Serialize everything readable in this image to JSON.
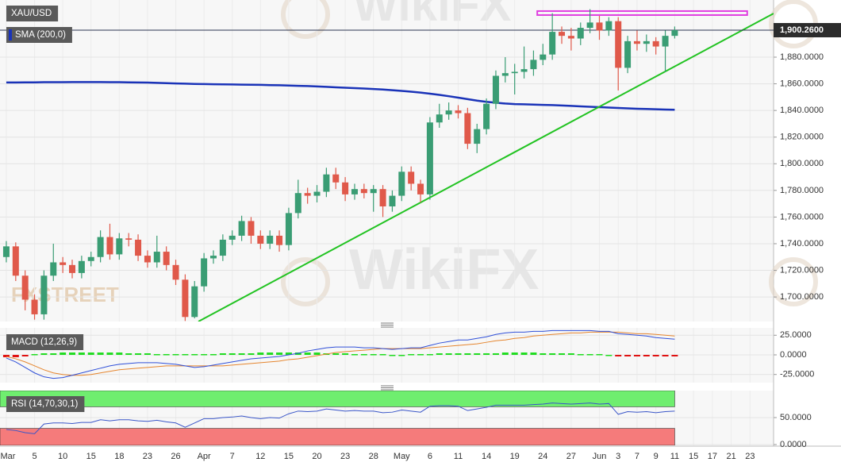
{
  "chart_data": [
    {
      "type": "candlestick",
      "title": "XAU/USD",
      "open": [
        1730,
        1738,
        1716,
        1698,
        1687,
        1716,
        1726,
        1724,
        1718,
        1727,
        1730,
        1745,
        1732,
        1744,
        1743,
        1731,
        1726,
        1734,
        1724,
        1713,
        1685,
        1708,
        1729,
        1731,
        1743,
        1746,
        1757,
        1746,
        1740,
        1746,
        1739,
        1763,
        1778,
        1776,
        1779,
        1792,
        1786,
        1777,
        1781,
        1778,
        1781,
        1768,
        1776,
        1794,
        1785,
        1777,
        1831,
        1837,
        1840,
        1838,
        1815,
        1826,
        1845,
        1866,
        1868,
        1869,
        1871,
        1878,
        1882,
        1899,
        1896,
        1894,
        1902,
        1906,
        1900,
        1907,
        1872,
        1892,
        1890,
        1892,
        1888,
        1896
      ],
      "high": [
        1742,
        1741,
        1720,
        1702,
        1720,
        1740,
        1730,
        1728,
        1731,
        1734,
        1750,
        1755,
        1748,
        1748,
        1747,
        1735,
        1746,
        1738,
        1728,
        1717,
        1712,
        1733,
        1735,
        1747,
        1750,
        1761,
        1760,
        1750,
        1750,
        1750,
        1767,
        1788,
        1782,
        1784,
        1797,
        1797,
        1790,
        1785,
        1785,
        1784,
        1784,
        1780,
        1798,
        1798,
        1788,
        1835,
        1845,
        1846,
        1844,
        1842,
        1830,
        1849,
        1870,
        1880,
        1875,
        1888,
        1885,
        1890,
        1913,
        1903,
        1902,
        1906,
        1916,
        1911,
        1910,
        1910,
        1896,
        1900,
        1897,
        1895,
        1900,
        1903
      ],
      "low": [
        1726,
        1712,
        1690,
        1683,
        1683,
        1712,
        1718,
        1714,
        1714,
        1723,
        1726,
        1728,
        1728,
        1738,
        1727,
        1722,
        1722,
        1720,
        1709,
        1682,
        1684,
        1704,
        1725,
        1727,
        1739,
        1742,
        1740,
        1736,
        1736,
        1734,
        1735,
        1759,
        1770,
        1771,
        1775,
        1781,
        1772,
        1773,
        1774,
        1764,
        1760,
        1764,
        1772,
        1780,
        1771,
        1773,
        1827,
        1833,
        1834,
        1811,
        1808,
        1822,
        1841,
        1861,
        1852,
        1864,
        1866,
        1874,
        1878,
        1890,
        1885,
        1889,
        1898,
        1893,
        1896,
        1855,
        1868,
        1885,
        1884,
        1882,
        1869,
        1894
      ],
      "close": [
        1738,
        1716,
        1698,
        1687,
        1716,
        1726,
        1724,
        1718,
        1727,
        1730,
        1745,
        1732,
        1744,
        1743,
        1731,
        1726,
        1734,
        1724,
        1713,
        1685,
        1708,
        1729,
        1731,
        1743,
        1746,
        1757,
        1746,
        1740,
        1746,
        1739,
        1763,
        1778,
        1776,
        1779,
        1792,
        1786,
        1777,
        1781,
        1778,
        1781,
        1768,
        1776,
        1794,
        1785,
        1777,
        1831,
        1837,
        1840,
        1838,
        1815,
        1826,
        1845,
        1866,
        1868,
        1869,
        1871,
        1878,
        1882,
        1899,
        1896,
        1894,
        1902,
        1906,
        1900,
        1907,
        1872,
        1892,
        1890,
        1892,
        1888,
        1896,
        1900.26
      ],
      "up_color": "#3a9d74",
      "down_color": "#e0594a",
      "series": [
        {
          "name": "SMA (200,0)",
          "color": "#1a33b8",
          "values": [
            1861.0,
            1861.0,
            1861.1,
            1861.1,
            1861.2,
            1861.2,
            1861.2,
            1861.3,
            1861.3,
            1861.3,
            1861.3,
            1861.2,
            1861.2,
            1861.1,
            1861.0,
            1860.9,
            1860.7,
            1860.5,
            1860.3,
            1860.1,
            1859.9,
            1859.8,
            1859.7,
            1859.6,
            1859.5,
            1859.4,
            1859.3,
            1859.2,
            1859.0,
            1858.9,
            1858.7,
            1858.5,
            1858.3,
            1858.0,
            1857.7,
            1857.4,
            1857.1,
            1856.8,
            1856.5,
            1856.1,
            1855.7,
            1855.2,
            1854.7,
            1854.1,
            1853.4,
            1852.6,
            1851.7,
            1850.7,
            1849.6,
            1848.5,
            1847.4,
            1846.5,
            1845.8,
            1845.2,
            1844.8,
            1844.6,
            1844.4,
            1844.2,
            1844.0,
            1843.7,
            1843.4,
            1843.1,
            1842.8,
            1842.5,
            1842.2,
            1841.9,
            1841.6,
            1841.3,
            1841.1,
            1840.9,
            1840.7,
            1840.5
          ]
        }
      ],
      "trendline": {
        "color": "#22c322",
        "x": [
          20.4,
          81.5
        ],
        "y": [
          1681.6,
          1912.8
        ]
      },
      "resistance_zone": {
        "color": "#e03ee0",
        "x": [
          56.4,
          78.7
        ],
        "y": [
          1911.6,
          1914.6
        ]
      },
      "last_price": {
        "value": 1900.26,
        "label": "1,900.2600"
      },
      "xlim": [
        -0.67,
        81.5
      ],
      "xticks": [
        {
          "value": 0,
          "label": "Mar"
        },
        {
          "value": 3,
          "label": "5"
        },
        {
          "value": 6,
          "label": "10"
        },
        {
          "value": 9,
          "label": "15"
        },
        {
          "value": 12,
          "label": "18"
        },
        {
          "value": 15,
          "label": "23"
        },
        {
          "value": 18,
          "label": "26"
        },
        {
          "value": 21,
          "label": "Apr"
        },
        {
          "value": 24,
          "label": "7"
        },
        {
          "value": 27,
          "label": "12"
        },
        {
          "value": 30,
          "label": "15"
        },
        {
          "value": 33,
          "label": "20"
        },
        {
          "value": 36,
          "label": "23"
        },
        {
          "value": 39,
          "label": "28"
        },
        {
          "value": 42,
          "label": "May"
        },
        {
          "value": 45,
          "label": "6"
        },
        {
          "value": 48,
          "label": "11"
        },
        {
          "value": 51,
          "label": "14"
        },
        {
          "value": 54,
          "label": "19"
        },
        {
          "value": 57,
          "label": "24"
        },
        {
          "value": 60,
          "label": "27"
        },
        {
          "value": 63,
          "label": "Jun"
        },
        {
          "value": 65,
          "label": "3"
        },
        {
          "value": 67,
          "label": "7"
        },
        {
          "value": 69,
          "label": "9"
        },
        {
          "value": 71,
          "label": "11"
        },
        {
          "value": 73,
          "label": "15"
        },
        {
          "value": 75,
          "label": "17"
        },
        {
          "value": 77,
          "label": "21"
        },
        {
          "value": 79,
          "label": "23"
        }
      ],
      "ylim": [
        1681.6,
        1922.9
      ],
      "yticks": [
        {
          "value": 1700,
          "label": "1,700.0000"
        },
        {
          "value": 1720,
          "label": "1,720.0000"
        },
        {
          "value": 1740,
          "label": "1,740.0000"
        },
        {
          "value": 1760,
          "label": "1,760.0000"
        },
        {
          "value": 1780,
          "label": "1,780.0000"
        },
        {
          "value": 1800,
          "label": "1,800.0000"
        },
        {
          "value": 1820,
          "label": "1,820.0000"
        },
        {
          "value": 1840,
          "label": "1,840.0000"
        },
        {
          "value": 1860,
          "label": "1,860.0000"
        },
        {
          "value": 1880,
          "label": "1,880.0000"
        }
      ],
      "watermarks": [
        "WikiFX",
        "FXSTREET"
      ]
    },
    {
      "type": "macd",
      "title": "MACD (12,26,9)",
      "macd": {
        "color": "#2f4fd8",
        "values": [
          -4,
          -9,
          -16,
          -23,
          -28,
          -30,
          -29,
          -26,
          -23,
          -20,
          -17,
          -14,
          -12,
          -11,
          -10,
          -10,
          -10,
          -11,
          -12,
          -14,
          -16,
          -15,
          -13,
          -11,
          -9,
          -7,
          -5,
          -4,
          -3,
          -2,
          0,
          2,
          5,
          7,
          9,
          10,
          10,
          10,
          9,
          9,
          8,
          7,
          8,
          9,
          9,
          12,
          15,
          17,
          19,
          19,
          21,
          23,
          26,
          28,
          29,
          29,
          30,
          30,
          31,
          31,
          31,
          31,
          31,
          30,
          30,
          27,
          26,
          25,
          24,
          22,
          21,
          20
        ]
      },
      "signal": {
        "color": "#e5852e",
        "values": [
          -2,
          -5,
          -9,
          -14,
          -19,
          -23,
          -25,
          -26,
          -26,
          -25,
          -23,
          -21,
          -19,
          -18,
          -17,
          -16,
          -15,
          -14,
          -14,
          -14,
          -14,
          -14,
          -14,
          -14,
          -13,
          -12,
          -11,
          -10,
          -9,
          -8,
          -6,
          -5,
          -3,
          -1,
          1,
          3,
          4,
          5,
          6,
          7,
          8,
          8,
          8,
          8,
          8,
          9,
          10,
          11,
          12,
          13,
          14,
          16,
          18,
          19,
          21,
          22,
          24,
          25,
          26,
          27,
          28,
          28,
          29,
          29,
          29,
          29,
          28,
          27,
          27,
          26,
          25,
          24
        ]
      },
      "histogram": {
        "up_color": "#1fdc1f",
        "down_color": "#e01010",
        "values": [
          -3,
          -3,
          -2,
          1,
          2,
          2,
          3,
          3,
          3,
          3,
          3,
          3,
          3,
          2,
          2,
          2,
          1,
          1,
          1,
          1,
          1,
          1,
          1,
          2,
          2,
          2,
          2,
          3,
          3,
          3,
          3,
          3,
          3,
          3,
          2,
          2,
          2,
          1,
          1,
          1,
          1,
          0,
          0,
          1,
          1,
          1,
          2,
          2,
          2,
          2,
          2,
          2,
          2,
          3,
          3,
          3,
          3,
          2,
          2,
          2,
          2,
          1,
          1,
          1,
          0,
          -2,
          -2,
          -2,
          -2,
          -2,
          -2,
          -2
        ]
      },
      "ylim": [
        -35.4,
        34.4
      ],
      "yticks": [
        {
          "value": 25,
          "label": "25.0000"
        },
        {
          "value": 0,
          "label": "0.0000"
        },
        {
          "value": -25,
          "label": "-25.0000"
        }
      ]
    },
    {
      "type": "rsi",
      "title": "RSI (14,70,30,1)",
      "color": "#3a56c8",
      "values": [
        28,
        26,
        22,
        20,
        38,
        40,
        40,
        39,
        41,
        41,
        46,
        44,
        46,
        46,
        44,
        43,
        45,
        42,
        40,
        32,
        40,
        48,
        48,
        50,
        51,
        53,
        50,
        48,
        50,
        49,
        57,
        62,
        61,
        62,
        66,
        64,
        62,
        63,
        62,
        62,
        59,
        60,
        64,
        62,
        60,
        71,
        72,
        72,
        71,
        63,
        66,
        69,
        73,
        73,
        73,
        73,
        74,
        75,
        77,
        76,
        75,
        76,
        77,
        75,
        76,
        56,
        61,
        60,
        61,
        59,
        61,
        62
      ],
      "overbought": 70,
      "oversold": 30,
      "overbought_color": "#6fee6f",
      "oversold_color": "#f57b7b",
      "ylim": [
        -1.5,
        100
      ],
      "yticks": [
        {
          "value": 50,
          "label": "50.0000"
        },
        {
          "value": 0,
          "label": "0.0000"
        }
      ]
    }
  ]
}
